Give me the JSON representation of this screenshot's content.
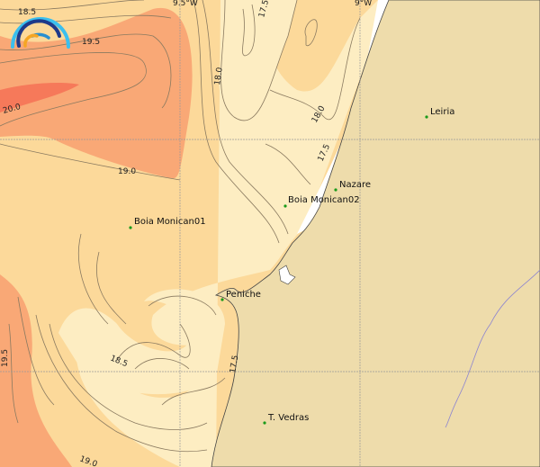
{
  "map": {
    "colors": {
      "land": "#eedcab",
      "sea_coolest": "#fdedc2",
      "sea_cool": "#fcd99a",
      "sea_warm": "#f9a876",
      "sea_hot": "#f6795a",
      "river": "#8c84d0",
      "place_marker": "#1a9a1a"
    },
    "logo": {
      "icon": "wave-arcs-logo"
    },
    "grid_labels": [
      "9.5°W",
      "9°W"
    ],
    "contour_labels": [
      "18.5",
      "19.5",
      "20.0",
      "19.0",
      "18.0",
      "17.5",
      "18.0",
      "17.5",
      "19.5",
      "18.5",
      "17.5",
      "19.0"
    ],
    "places": [
      {
        "name": "Leiria"
      },
      {
        "name": "Nazare"
      },
      {
        "name": "Boia Monican02"
      },
      {
        "name": "Boia Monican01"
      },
      {
        "name": "Peniche"
      },
      {
        "name": "T. Vedras"
      }
    ]
  }
}
